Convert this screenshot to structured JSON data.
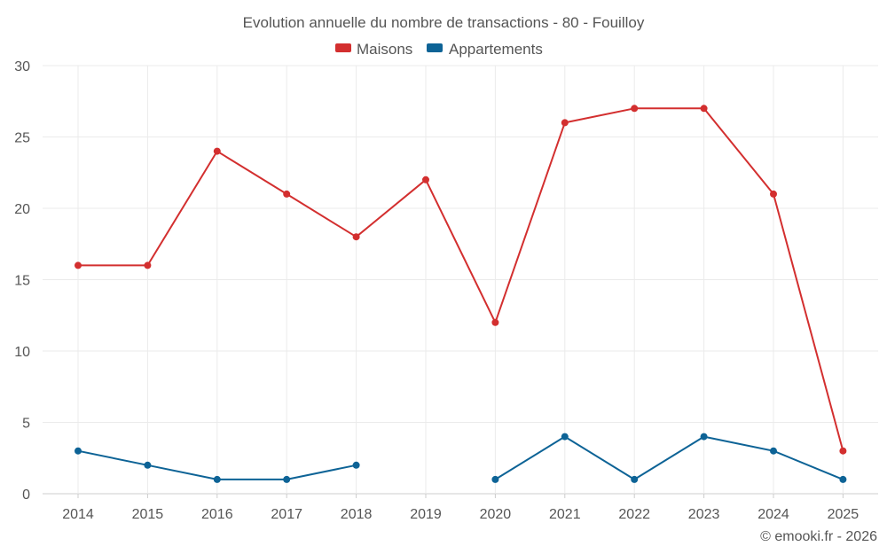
{
  "chart_data": {
    "type": "line",
    "title": "Evolution annuelle du nombre de transactions - 80 - Fouilloy",
    "categories": [
      "2014",
      "2015",
      "2016",
      "2017",
      "2018",
      "2019",
      "2020",
      "2021",
      "2022",
      "2023",
      "2024",
      "2025"
    ],
    "series": [
      {
        "name": "Maisons",
        "color": "#d32f2f",
        "values": [
          16,
          16,
          24,
          21,
          18,
          22,
          12,
          26,
          27,
          27,
          21,
          3
        ]
      },
      {
        "name": "Appartements",
        "color": "#0d6396",
        "values": [
          3,
          2,
          1,
          1,
          2,
          null,
          1,
          4,
          1,
          4,
          3,
          1
        ]
      }
    ],
    "ylim": [
      0,
      30
    ],
    "yticks": [
      "0",
      "5",
      "10",
      "15",
      "20",
      "25",
      "30"
    ],
    "legend_position": "top-center",
    "grid": true,
    "xlabel": "",
    "ylabel": ""
  },
  "credit": "© emooki.fr - 2026"
}
